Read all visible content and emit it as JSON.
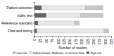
{
  "chart_data": {
    "type": "bar",
    "orientation": "horizontal",
    "stacked": true,
    "categories": [
      "Flow and timing",
      "Reference standard",
      "Index test",
      "Patient selection"
    ],
    "series": [
      {
        "name": "High risk",
        "color": "#606060",
        "values": [
          10,
          15,
          50,
          30
        ]
      },
      {
        "name": "Indeterminate, Moderate, or Unclear Risk",
        "color": "#e8e8e8",
        "values": [
          285,
          155,
          145,
          185
        ]
      },
      {
        "name": "Low risk",
        "color": "#c8c8c8",
        "values": [
          20,
          20,
          95,
          75
        ]
      }
    ],
    "xlabel": "Number of studies",
    "xlim": [
      0,
      325
    ],
    "xticks": [
      0,
      25,
      50,
      75,
      100,
      125,
      150,
      175,
      200,
      225,
      250,
      275,
      300,
      325
    ],
    "grid": false,
    "legend": "bottom"
  }
}
